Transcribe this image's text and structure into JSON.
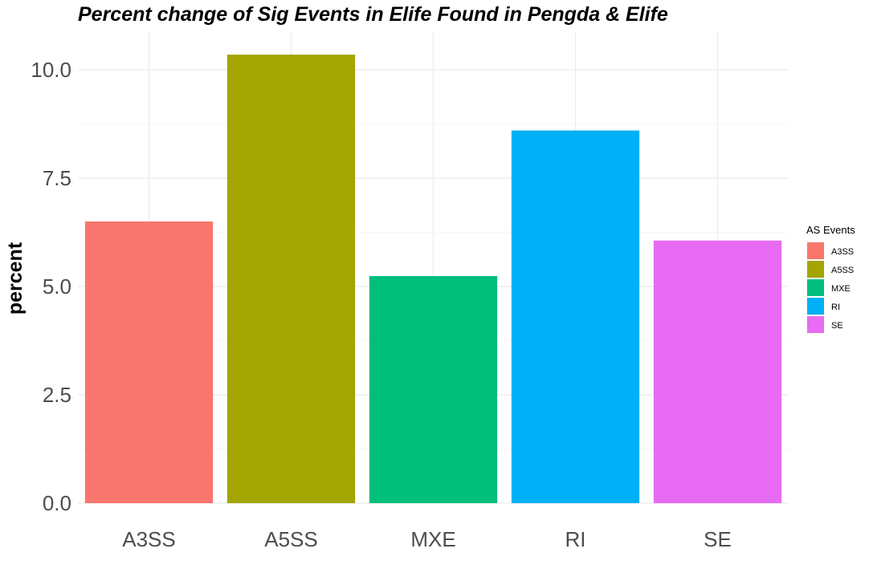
{
  "chart_data": {
    "type": "bar",
    "title": "Percent change of Sig Events in Elife Found in Pengda & Elife",
    "xlabel": "",
    "ylabel": "percent",
    "categories": [
      "A3SS",
      "A5SS",
      "MXE",
      "RI",
      "SE"
    ],
    "values": [
      6.5,
      10.35,
      5.24,
      8.6,
      6.06
    ],
    "colors": [
      "#F8766D",
      "#A3A500",
      "#00BF7D",
      "#00B0F6",
      "#E76BF3"
    ],
    "ylim": [
      0,
      10.8
    ],
    "yticks": [
      0.0,
      2.5,
      5.0,
      7.5,
      10.0
    ],
    "ytick_labels": [
      "0.0",
      "2.5",
      "5.0",
      "7.5",
      "10.0"
    ],
    "grid": true,
    "legend": {
      "title": "AS Events",
      "position": "right",
      "entries": [
        "A3SS",
        "A5SS",
        "MXE",
        "RI",
        "SE"
      ]
    }
  }
}
